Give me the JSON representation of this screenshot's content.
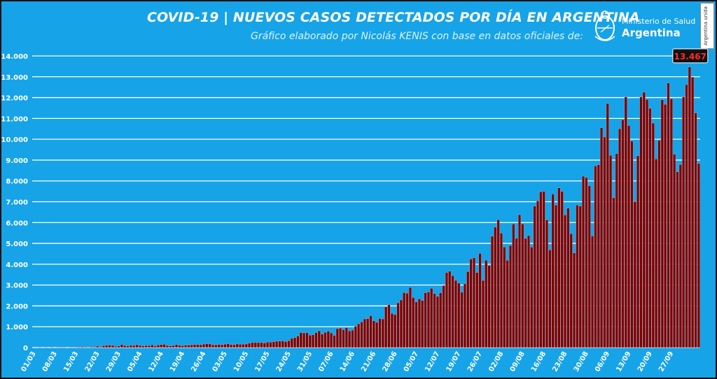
{
  "header": {
    "title": "COVID-19  |  NUEVOS CASOS DETECTADOS POR DÍA EN ARGENTINA",
    "subtitle": "Gráfico elaborado por Nicolás KENIS con base en datos oficiales de:",
    "ministry_line1": "Ministerio de Salud",
    "ministry_line2": "Argentina",
    "badge": "Argentina unida"
  },
  "colors": {
    "background": "#16a3e8",
    "bar_fill": "#7a0000",
    "bar_stroke": "#d9a0a0",
    "gridline": "#ffffff",
    "axis_text": "#ffffff",
    "max_label_bg": "#111111",
    "max_label_text": "#ff2a2a"
  },
  "chart_data": {
    "type": "bar",
    "title": "",
    "xlabel": "",
    "ylabel": "",
    "ylim": [
      0,
      14000
    ],
    "grid": true,
    "y_ticks": [
      0,
      1000,
      2000,
      3000,
      4000,
      5000,
      6000,
      7000,
      8000,
      9000,
      10000,
      11000,
      12000,
      13000,
      14000
    ],
    "y_tick_labels": [
      "0",
      "1.000",
      "2.000",
      "3.000",
      "4.000",
      "5.000",
      "6.000",
      "7.000",
      "8.000",
      "9.000",
      "10.000",
      "11.000",
      "12.000",
      "13.000",
      "14.000"
    ],
    "x_tick_labels": [
      "01/03",
      "08/03",
      "15/03",
      "22/03",
      "29/03",
      "05/04",
      "12/04",
      "19/04",
      "26/04",
      "03/05",
      "10/05",
      "17/05",
      "24/05",
      "31/05",
      "07/06",
      "14/06",
      "21/06",
      "28/06",
      "05/07",
      "12/07",
      "19/07",
      "26/07",
      "02/08",
      "09/08",
      "16/08",
      "23/08",
      "30/08",
      "06/09",
      "13/09",
      "20/09",
      "27/09"
    ],
    "max_label": "13.467",
    "max_date": "24/09",
    "dates_start": "01/03",
    "dates_end": "27/09",
    "values": [
      0,
      0,
      1,
      0,
      2,
      0,
      3,
      0,
      3,
      4,
      5,
      0,
      3,
      3,
      11,
      20,
      31,
      19,
      9,
      30,
      30,
      67,
      35,
      87,
      101,
      115,
      101,
      55,
      75,
      146,
      90,
      74,
      108,
      96,
      130,
      101,
      73,
      89,
      89,
      123,
      67,
      120,
      145,
      152,
      97,
      76,
      98,
      143,
      102,
      87,
      115,
      113,
      125,
      144,
      141,
      130,
      165,
      180,
      172,
      132,
      124,
      147,
      135,
      159,
      181,
      145,
      133,
      169,
      161,
      161,
      168,
      206,
      243,
      240,
      239,
      243,
      218,
      264,
      255,
      276,
      305,
      307,
      318,
      286,
      326,
      437,
      473,
      552,
      718,
      704,
      710,
      592,
      614,
      719,
      795,
      648,
      725,
      786,
      700,
      583,
      904,
      929,
      854,
      958,
      795,
      836,
      1012,
      1141,
      1226,
      1374,
      1386,
      1528,
      1282,
      1208,
      1393,
      1374,
      1958,
      2060,
      1634,
      1581,
      2146,
      2285,
      2635,
      2606,
      2886,
      2401,
      2189,
      2335,
      2262,
      2632,
      2667,
      2845,
      2590,
      2456,
      2632,
      2979,
      3604,
      3663,
      3449,
      3223,
      3099,
      2657,
      3059,
      3645,
      4250,
      4306,
      3604,
      4518,
      3223,
      4190,
      3937,
      5344,
      5782,
      6134,
      5493,
      4824,
      4190,
      4890,
      5929,
      5241,
      6377,
      5929,
      5241,
      5376,
      4824,
      6792,
      7043,
      7482,
      7498,
      6127,
      4688,
      7369,
      6840,
      7663,
      7498,
      6365,
      6693,
      5464,
      4543,
      6840,
      6792,
      8225,
      8159,
      7767,
      5352,
      8713,
      8771,
      10550,
      10104,
      11717,
      9230,
      7187,
      9309,
      10504,
      10933,
      12026,
      10661,
      9908,
      7008,
      9207,
      12027,
      12259,
      11905,
      11484,
      10776,
      9056,
      9946,
      11893,
      11674,
      12701,
      11945,
      9283,
      8431,
      8782,
      12026,
      12625,
      13467,
      12982,
      11263,
      8841
    ]
  }
}
